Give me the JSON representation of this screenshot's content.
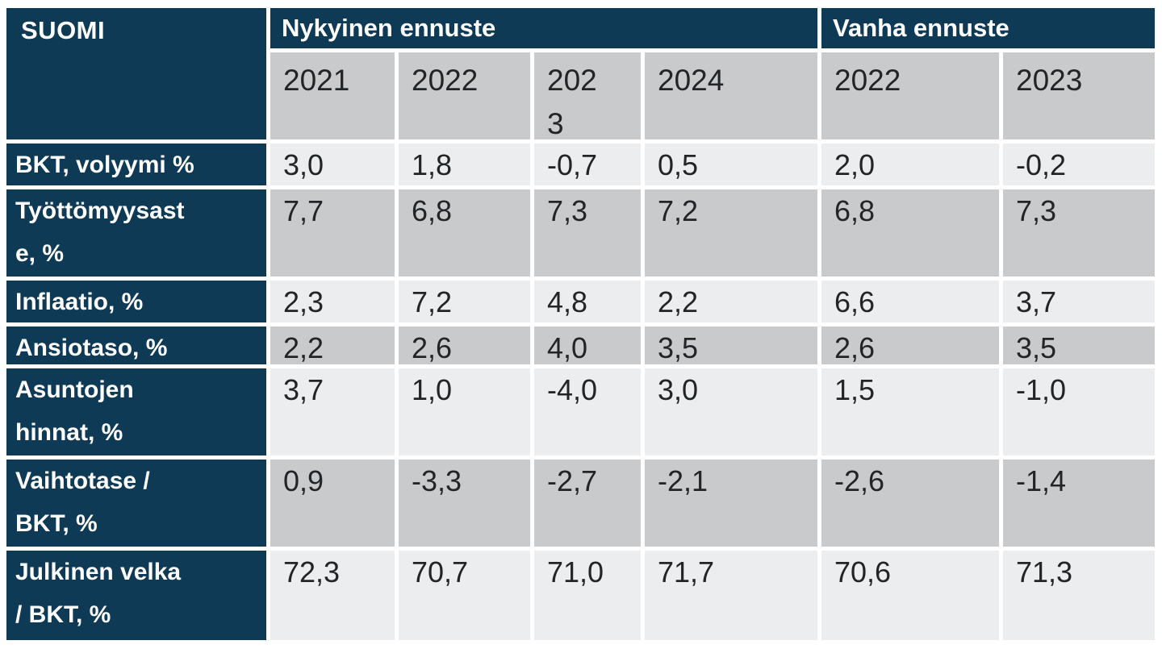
{
  "table": {
    "corner_label": "SUOMI",
    "groups": [
      {
        "label": "Nykyinen ennuste",
        "span": 4
      },
      {
        "label": "Vanha ennuste",
        "span": 2
      }
    ],
    "year_headers": [
      {
        "lines": [
          "2021"
        ]
      },
      {
        "lines": [
          "2022"
        ]
      },
      {
        "lines": [
          "202",
          "3"
        ]
      },
      {
        "lines": [
          "2024"
        ]
      },
      {
        "lines": [
          "2022"
        ]
      },
      {
        "lines": [
          "2023"
        ]
      }
    ],
    "rows": [
      {
        "label_lines": [
          "BKT, volyymi %"
        ],
        "values": [
          "3,0",
          "1,8",
          "-0,7",
          "0,5",
          "2,0",
          "-0,2"
        ]
      },
      {
        "label_lines": [
          "Työttömyysast",
          "e, %"
        ],
        "values": [
          "7,7",
          "6,8",
          "7,3",
          "7,2",
          "6,8",
          "7,3"
        ]
      },
      {
        "label_lines": [
          "Inflaatio, %"
        ],
        "values": [
          "2,3",
          "7,2",
          "4,8",
          "2,2",
          "6,6",
          "3,7"
        ]
      },
      {
        "label_lines": [
          "Ansiotaso, %"
        ],
        "values": [
          "2,2",
          "2,6",
          "4,0",
          "3,5",
          "2,6",
          "3,5"
        ]
      },
      {
        "label_lines": [
          "Asuntojen",
          "hinnat, %"
        ],
        "values": [
          "3,7",
          "1,0",
          "-4,0",
          "3,0",
          "1,5",
          "-1,0"
        ]
      },
      {
        "label_lines": [
          "Vaihtotase /",
          "BKT, %"
        ],
        "values": [
          "0,9",
          "-3,3",
          "-2,7",
          "-2,1",
          "-2,6",
          "-1,4"
        ]
      },
      {
        "label_lines": [
          "Julkinen velka",
          "/ BKT, %"
        ],
        "values": [
          "72,3",
          "70,7",
          "71,0",
          "71,7",
          "70,6",
          "71,3"
        ]
      }
    ]
  },
  "chart_data": {
    "type": "table",
    "title": "SUOMI",
    "column_groups": [
      {
        "label": "Nykyinen ennuste",
        "columns": [
          "2021",
          "2022",
          "2023",
          "2024"
        ]
      },
      {
        "label": "Vanha ennuste",
        "columns": [
          "2022",
          "2023"
        ]
      }
    ],
    "columns": [
      "2021",
      "2022",
      "2023",
      "2024",
      "2022 (vanha)",
      "2023 (vanha)"
    ],
    "rows": [
      {
        "label": "BKT, volyymi %",
        "values": [
          3.0,
          1.8,
          -0.7,
          0.5,
          2.0,
          -0.2
        ]
      },
      {
        "label": "Työttömyysaste, %",
        "values": [
          7.7,
          6.8,
          7.3,
          7.2,
          6.8,
          7.3
        ]
      },
      {
        "label": "Inflaatio, %",
        "values": [
          2.3,
          7.2,
          4.8,
          2.2,
          6.6,
          3.7
        ]
      },
      {
        "label": "Ansiotaso, %",
        "values": [
          2.2,
          2.6,
          4.0,
          3.5,
          2.6,
          3.5
        ]
      },
      {
        "label": "Asuntojen hinnat, %",
        "values": [
          3.7,
          1.0,
          -4.0,
          3.0,
          1.5,
          -1.0
        ]
      },
      {
        "label": "Vaihtotase / BKT, %",
        "values": [
          0.9,
          -3.3,
          -2.7,
          -2.1,
          -2.6,
          -1.4
        ]
      },
      {
        "label": "Julkinen velka / BKT, %",
        "values": [
          72.3,
          70.7,
          71.0,
          71.7,
          70.6,
          71.3
        ]
      }
    ],
    "decimal_separator": ",",
    "layout": "row labels navy left column; alternating light/dark gray data rows; white gaps as cell separators"
  },
  "colors": {
    "navy": "#0f3a55",
    "row_light": "#ebedee",
    "row_dark": "#c8cacc",
    "text_dark": "#222528",
    "text_white": "#ffffff"
  }
}
